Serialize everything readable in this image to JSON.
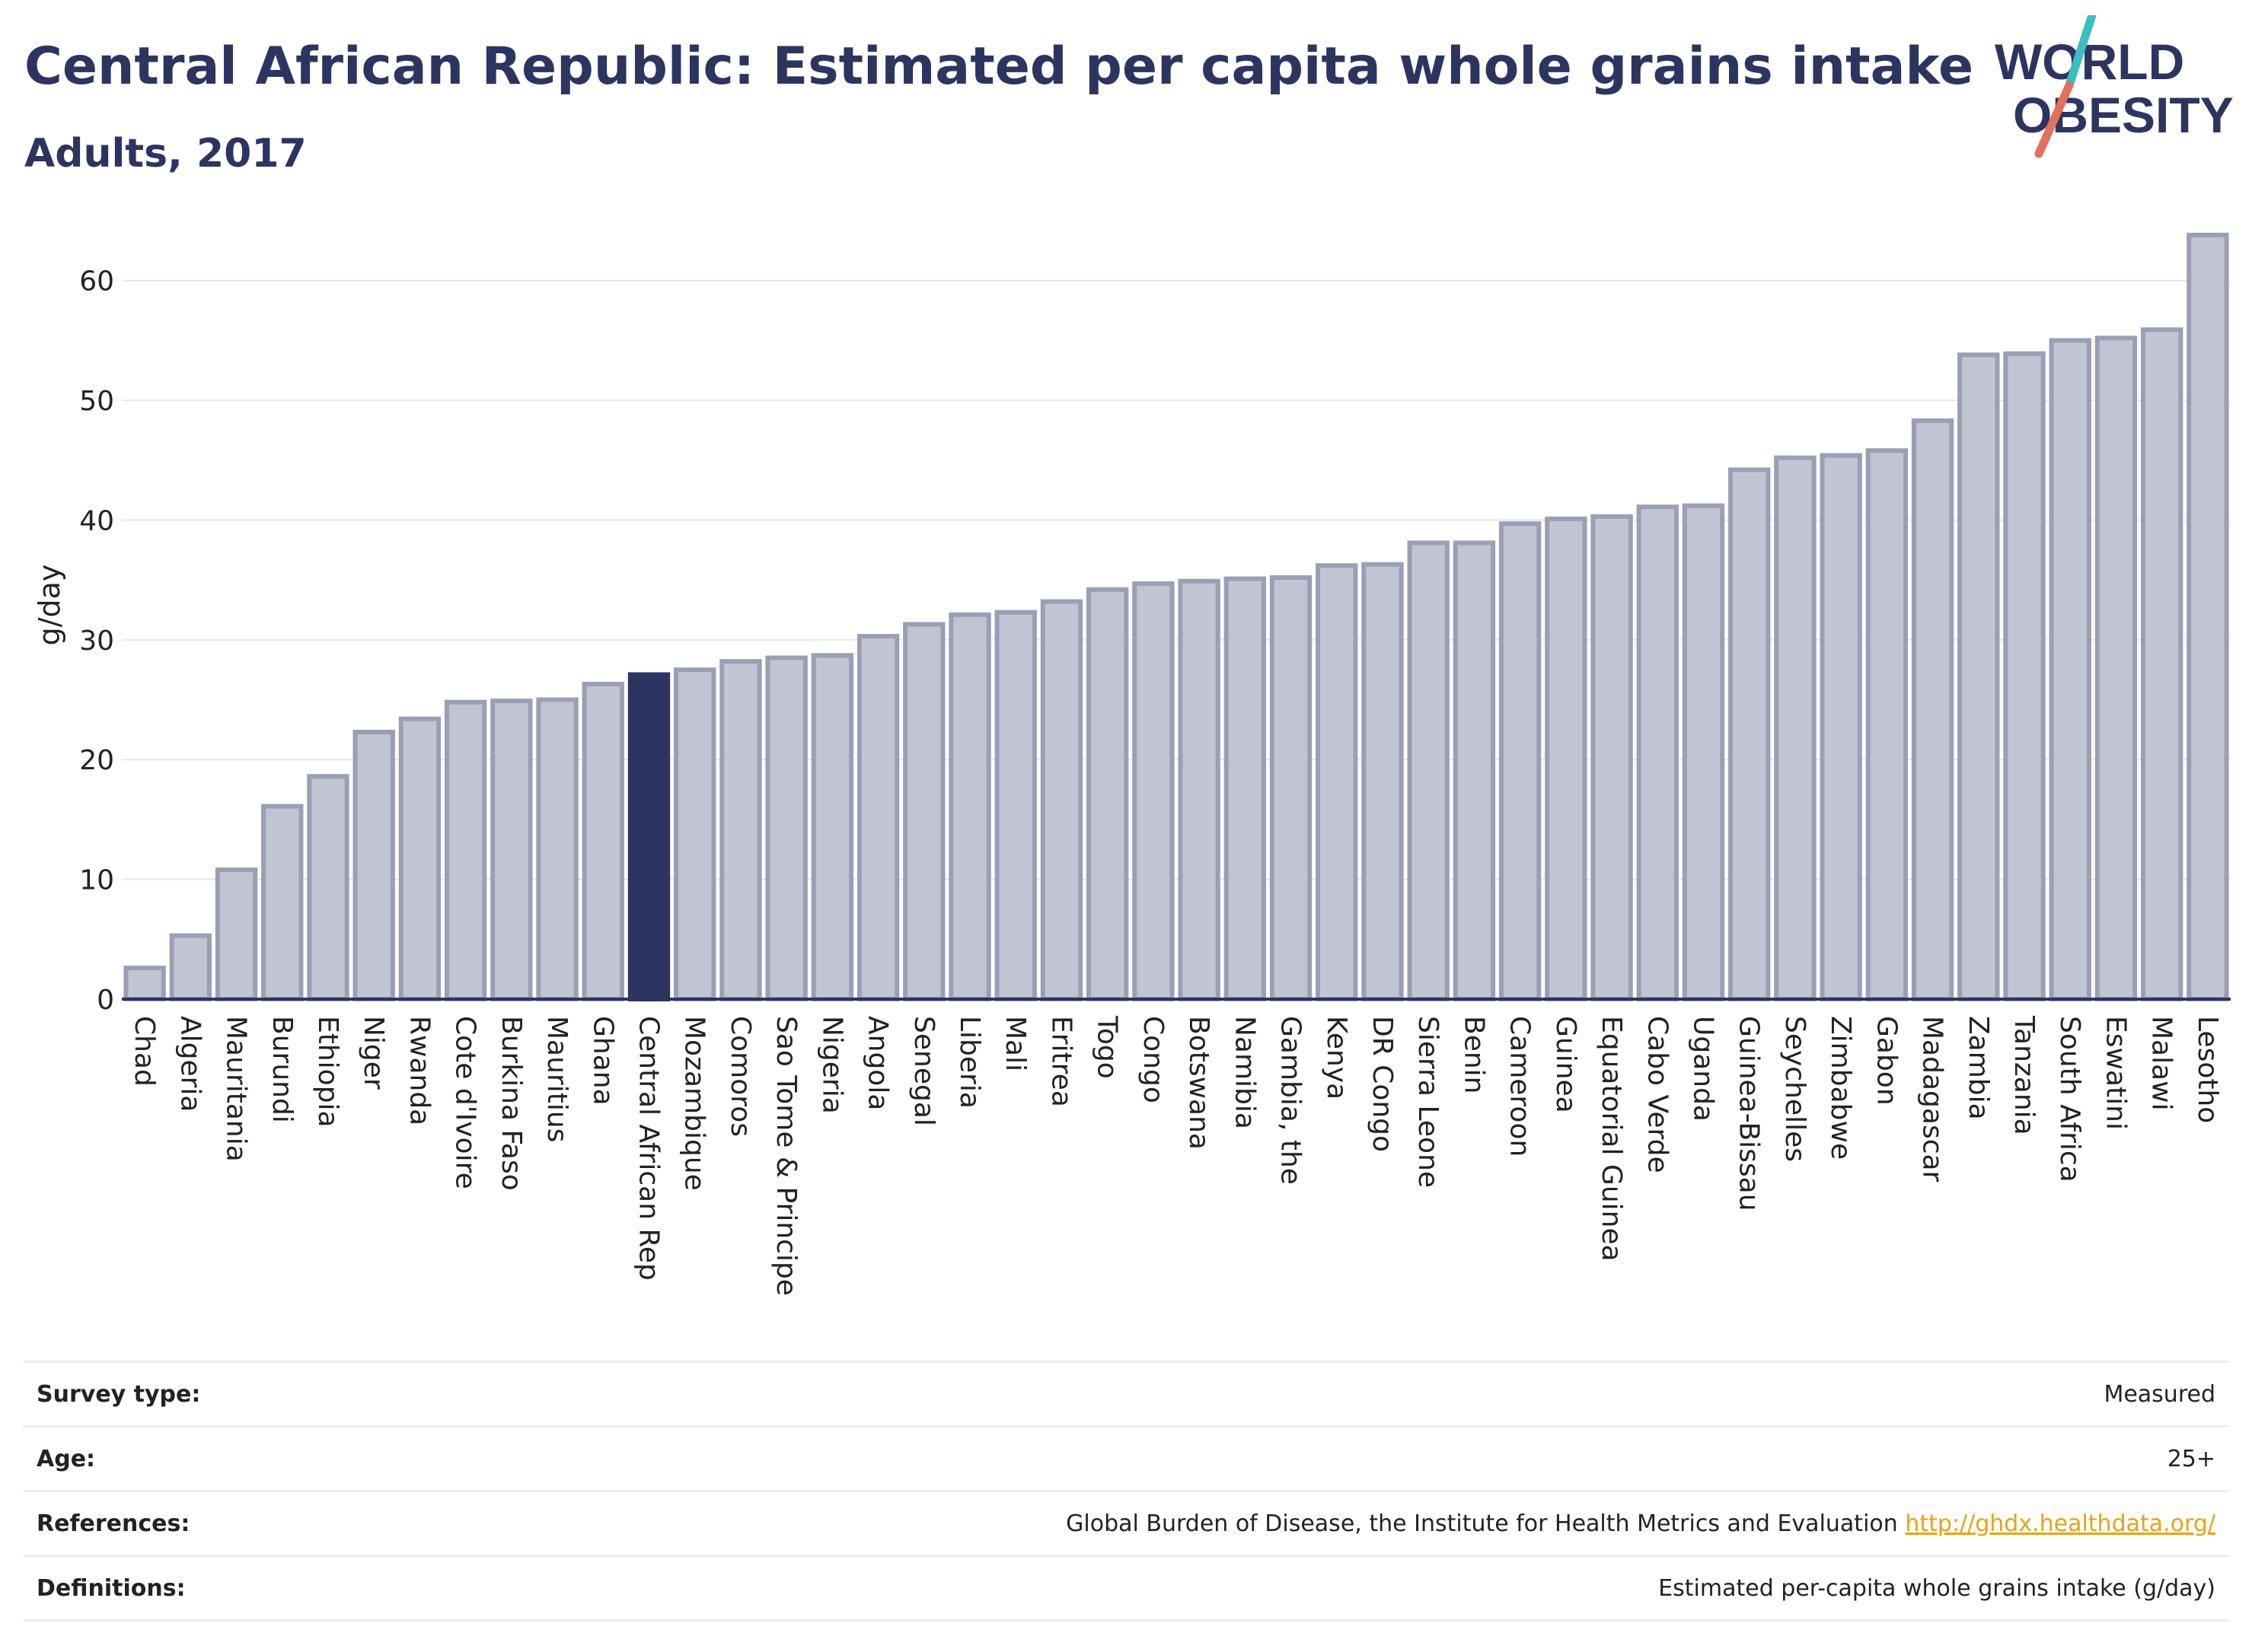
{
  "header": {
    "title": "Central African Republic: Estimated per capita whole grains intake",
    "subtitle": "Adults, 2017"
  },
  "logo": {
    "line1": "WORLD",
    "line2": "OBESITY",
    "accent_teal": "#3bbdc1",
    "accent_coral": "#e2705d"
  },
  "colors": {
    "bar": "#c1c4d2",
    "bar_edge": "#9a9fb5",
    "highlight": "#2c3560",
    "axis": "#2c3560",
    "grid": "#e6e6e6"
  },
  "chart_data": {
    "type": "bar",
    "title": "Central African Republic: Estimated per capita whole grains intake",
    "subtitle": "Adults, 2017",
    "ylabel": "g/day",
    "xlabel": "",
    "ylim": [
      0,
      65
    ],
    "yticks": [
      0,
      10,
      20,
      30,
      40,
      50,
      60
    ],
    "grid": true,
    "highlight": "Central African Rep",
    "categories": [
      "Chad",
      "Algeria",
      "Mauritania",
      "Burundi",
      "Ethiopia",
      "Niger",
      "Rwanda",
      "Cote d'Ivoire",
      "Burkina Faso",
      "Mauritius",
      "Ghana",
      "Central African Rep",
      "Mozambique",
      "Comoros",
      "Sao Tome & Principe",
      "Nigeria",
      "Angola",
      "Senegal",
      "Liberia",
      "Mali",
      "Eritrea",
      "Togo",
      "Congo",
      "Botswana",
      "Namibia",
      "Gambia, the",
      "Kenya",
      "DR Congo",
      "Sierra Leone",
      "Benin",
      "Cameroon",
      "Guinea",
      "Equatorial Guinea",
      "Cabo Verde",
      "Uganda",
      "Guinea-Bissau",
      "Seychelles",
      "Zimbabwe",
      "Gabon",
      "Madagascar",
      "Zambia",
      "Tanzania",
      "South Africa",
      "Eswatini",
      "Malawi",
      "Lesotho"
    ],
    "values": [
      2.6,
      5.3,
      10.8,
      16.1,
      18.6,
      22.3,
      23.4,
      24.8,
      24.9,
      25.0,
      26.3,
      27.1,
      27.5,
      28.2,
      28.5,
      28.7,
      30.3,
      31.3,
      32.1,
      32.3,
      33.2,
      34.2,
      34.7,
      34.9,
      35.1,
      35.2,
      36.2,
      36.3,
      38.1,
      38.1,
      39.7,
      40.1,
      40.3,
      41.1,
      41.2,
      44.2,
      45.2,
      45.4,
      45.8,
      48.3,
      53.8,
      53.9,
      55.0,
      55.2,
      55.9,
      63.8
    ]
  },
  "meta": [
    {
      "key": "Survey type:",
      "value": "Measured"
    },
    {
      "key": "Age:",
      "value": "25+"
    },
    {
      "key": "References:",
      "value": "Global Burden of Disease, the Institute for Health Metrics and Evaluation ",
      "link": "http://ghdx.healthdata.org/"
    },
    {
      "key": "Definitions:",
      "value": "Estimated per-capita whole grains intake (g/day)"
    }
  ]
}
